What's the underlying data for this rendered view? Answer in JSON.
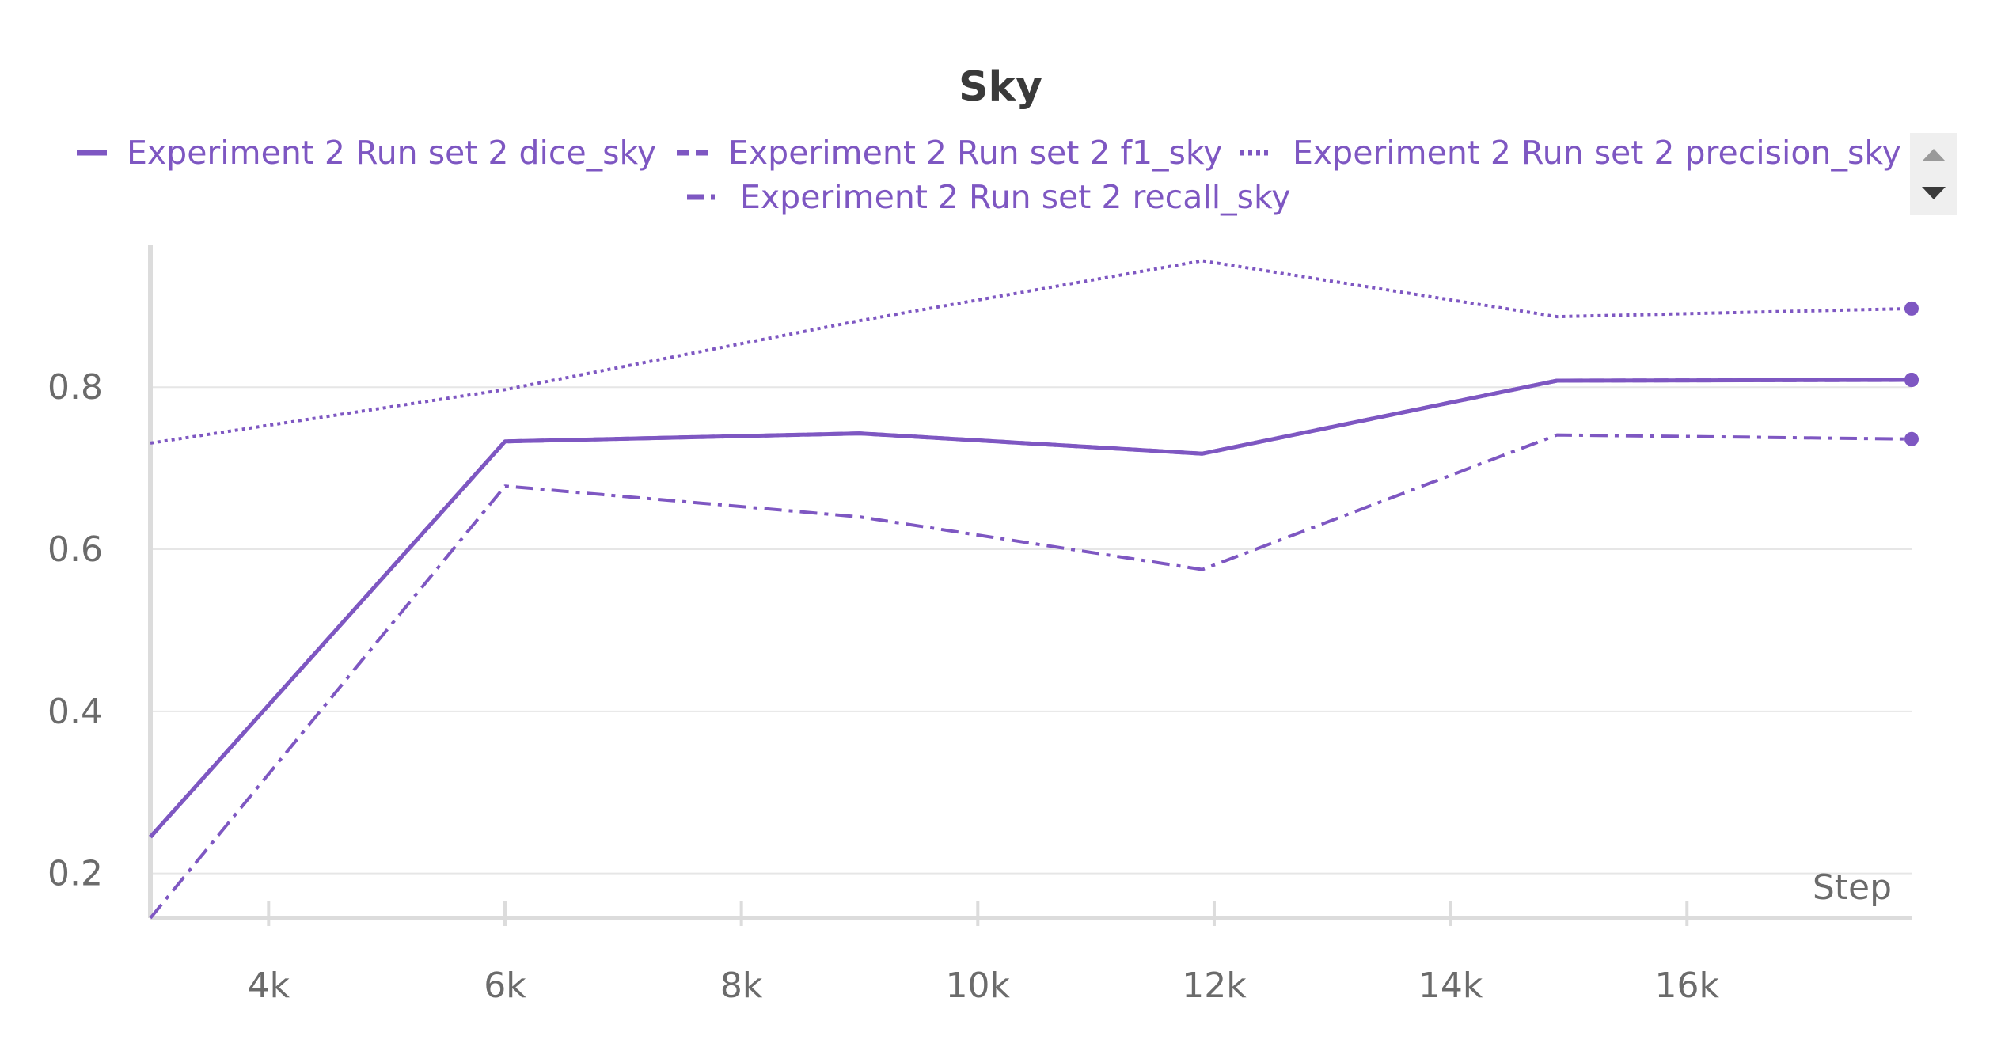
{
  "colors": {
    "series": "#7e57c2",
    "text": "#3a3a3a",
    "axis_label": "#6b6b6b",
    "grid": "#e6e6e6",
    "axis": "#dcdcdc",
    "scroll_bg": "#efefef",
    "scroll_up": "#9a9a9a",
    "scroll_down": "#3a3a3a"
  },
  "chart_data": {
    "type": "line",
    "title": "Sky",
    "xlabel": "Step",
    "ylabel": "",
    "xlim": [
      3000,
      17900
    ],
    "ylim": [
      0.145,
      0.975
    ],
    "x_ticks": [
      4000,
      6000,
      8000,
      10000,
      12000,
      14000,
      16000
    ],
    "x_tick_labels": [
      "4k",
      "6k",
      "8k",
      "10k",
      "12k",
      "14k",
      "16k"
    ],
    "y_ticks": [
      0.2,
      0.4,
      0.6,
      0.8
    ],
    "y_tick_labels": [
      "0.2",
      "0.4",
      "0.6",
      "0.8"
    ],
    "grid": "horizontal",
    "legend_position": "top",
    "series": [
      {
        "name": "Experiment 2 Run set 2 dice_sky",
        "style": "solid",
        "x": [
          3000,
          6000,
          9000,
          11900,
          14900,
          17900
        ],
        "y": [
          0.245,
          0.733,
          0.743,
          0.718,
          0.808,
          0.809
        ]
      },
      {
        "name": "Experiment 2 Run set 2 f1_sky",
        "style": "dashed",
        "x": [
          3000,
          6000,
          9000,
          11900,
          14900,
          17900
        ],
        "y": [
          0.245,
          0.733,
          0.743,
          0.718,
          0.808,
          0.809
        ]
      },
      {
        "name": "Experiment 2 Run set 2 precision_sky",
        "style": "dotted",
        "x": [
          3000,
          6000,
          9000,
          11900,
          14900,
          17900
        ],
        "y": [
          0.731,
          0.797,
          0.882,
          0.956,
          0.887,
          0.897
        ]
      },
      {
        "name": "Experiment 2 Run set 2 recall_sky",
        "style": "dashdot",
        "x": [
          3000,
          6000,
          9000,
          11900,
          14900,
          17900
        ],
        "y": [
          0.145,
          0.678,
          0.64,
          0.575,
          0.741,
          0.736
        ]
      }
    ]
  }
}
